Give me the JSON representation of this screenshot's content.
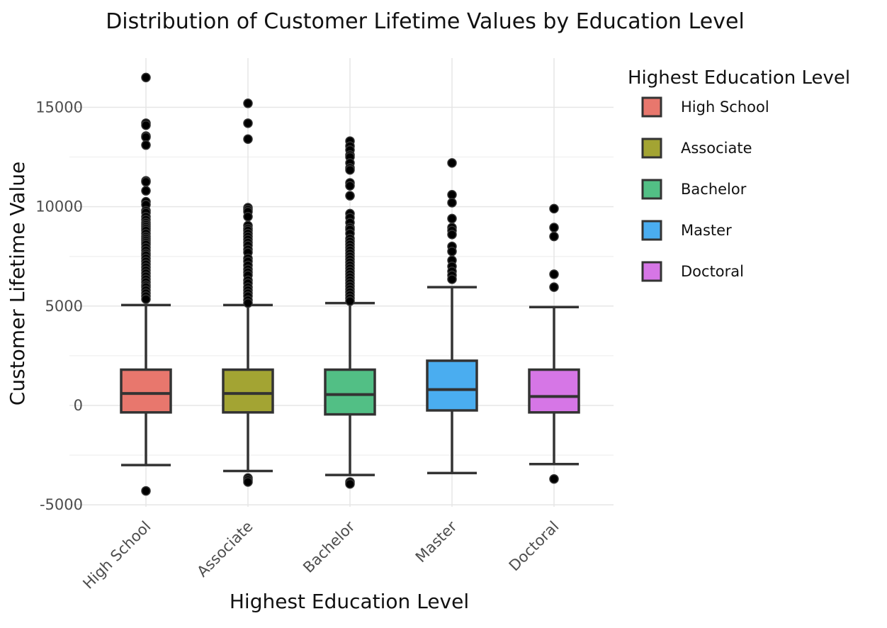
{
  "chart_data": {
    "type": "box",
    "title": "Distribution of Customer Lifetime Values by Education Level",
    "xlabel": "Highest Education Level",
    "ylabel": "Customer Lifetime Value",
    "ylim": [
      -5500,
      17500
    ],
    "yticks": [
      -5000,
      0,
      5000,
      10000,
      15000
    ],
    "ytick_labels": [
      "-5000",
      "0",
      "5000",
      "10000",
      "15000"
    ],
    "grid": true,
    "legend": {
      "title": "Highest Education Level",
      "position": "right"
    },
    "categories": [
      "High School",
      "Associate",
      "Bachelor",
      "Master",
      "Doctoral"
    ],
    "series": [
      {
        "name": "High School",
        "color": "#E8776D",
        "min": -3000,
        "q1": -350,
        "median": 600,
        "q3": 1800,
        "max": 5050,
        "outliers": [
          16500,
          14200,
          14100,
          13550,
          13500,
          13100,
          11300,
          11250,
          10800,
          10250,
          10100,
          9800,
          9700,
          9500,
          9350,
          9200,
          9100,
          9000,
          8900,
          8800,
          8650,
          8500,
          8400,
          8300,
          8200,
          8100,
          7950,
          7800,
          7650,
          7550,
          7400,
          7250,
          7100,
          6950,
          6800,
          6650,
          6500,
          6350,
          6200,
          6050,
          5950,
          5800,
          5650,
          5500,
          5350,
          -4300
        ]
      },
      {
        "name": "Associate",
        "color": "#A3A433",
        "min": -3300,
        "q1": -350,
        "median": 600,
        "q3": 1800,
        "max": 5050,
        "outliers": [
          15200,
          14200,
          13400,
          9950,
          9850,
          9750,
          9500,
          9050,
          8900,
          8800,
          8650,
          8500,
          8350,
          8200,
          8050,
          7850,
          7700,
          7400,
          7250,
          7050,
          6850,
          6700,
          6550,
          6300,
          6150,
          5950,
          5800,
          5650,
          5500,
          5300,
          5150,
          -3650,
          -3750,
          -3850
        ]
      },
      {
        "name": "Bachelor",
        "color": "#52BF85",
        "min": -3500,
        "q1": -450,
        "median": 550,
        "q3": 1800,
        "max": 5150,
        "outliers": [
          13300,
          13050,
          12850,
          12600,
          12500,
          12200,
          11950,
          11850,
          11200,
          11050,
          10550,
          9650,
          9450,
          9200,
          8950,
          8850,
          8650,
          8400,
          8250,
          8100,
          7950,
          7800,
          7650,
          7500,
          7350,
          7200,
          7050,
          6900,
          6750,
          6600,
          6450,
          6300,
          6150,
          6000,
          5850,
          5700,
          5550,
          5400,
          5250,
          -3850,
          -3950
        ]
      },
      {
        "name": "Master",
        "color": "#4AADF0",
        "min": -3400,
        "q1": -250,
        "median": 800,
        "q3": 2250,
        "max": 5950,
        "outliers": [
          12200,
          10600,
          10200,
          9400,
          8950,
          8800,
          8600,
          8000,
          7750,
          7300,
          7000,
          6750,
          6550,
          6350
        ]
      },
      {
        "name": "Doctoral",
        "color": "#D676E6",
        "min": -2950,
        "q1": -350,
        "median": 450,
        "q3": 1800,
        "max": 4950,
        "outliers": [
          9900,
          8950,
          8500,
          6600,
          5950,
          -3700
        ]
      }
    ]
  }
}
